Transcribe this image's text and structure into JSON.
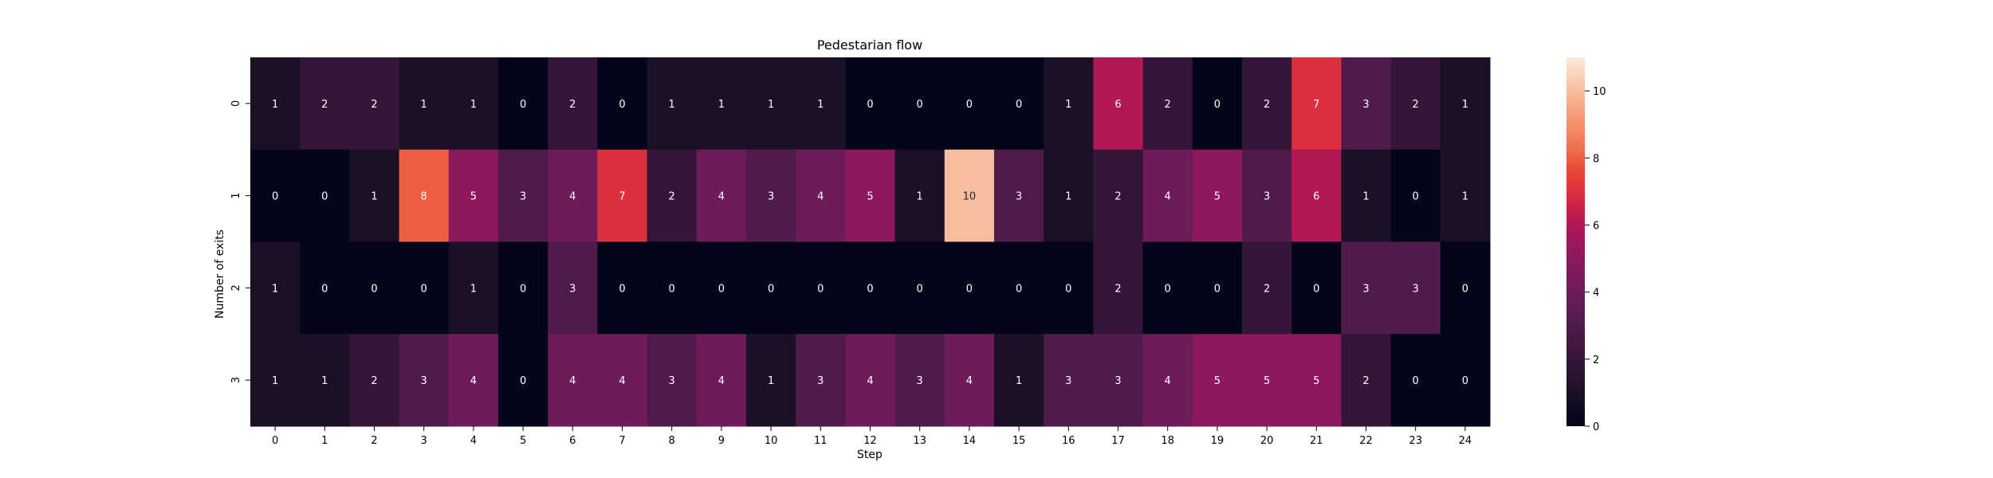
{
  "chart_data": {
    "type": "heatmap",
    "title": "Pedestarian flow",
    "xlabel": "Step",
    "ylabel": "Number of exits",
    "x": [
      0,
      1,
      2,
      3,
      4,
      5,
      6,
      7,
      8,
      9,
      10,
      11,
      12,
      13,
      14,
      15,
      16,
      17,
      18,
      19,
      20,
      21,
      22,
      23,
      24
    ],
    "y": [
      0,
      1,
      2,
      3
    ],
    "values": [
      [
        1,
        2,
        2,
        1,
        1,
        0,
        2,
        0,
        1,
        1,
        1,
        1,
        0,
        0,
        0,
        0,
        1,
        6,
        2,
        0,
        2,
        7,
        3,
        2,
        1
      ],
      [
        0,
        0,
        1,
        8,
        5,
        3,
        4,
        7,
        2,
        4,
        3,
        4,
        5,
        1,
        10,
        3,
        1,
        2,
        4,
        5,
        3,
        6,
        1,
        0,
        1
      ],
      [
        1,
        0,
        0,
        0,
        1,
        0,
        3,
        0,
        0,
        0,
        0,
        0,
        0,
        0,
        0,
        0,
        0,
        2,
        0,
        0,
        2,
        0,
        3,
        3,
        0
      ],
      [
        1,
        1,
        2,
        3,
        4,
        0,
        4,
        4,
        3,
        4,
        1,
        3,
        4,
        3,
        4,
        1,
        3,
        3,
        4,
        5,
        5,
        5,
        2,
        0,
        0
      ]
    ],
    "colorbar": {
      "range": [
        0,
        11
      ],
      "ticks": [
        0,
        2,
        4,
        6,
        8,
        10
      ]
    },
    "colormap": "rocket",
    "annotations": true,
    "grid": false
  }
}
